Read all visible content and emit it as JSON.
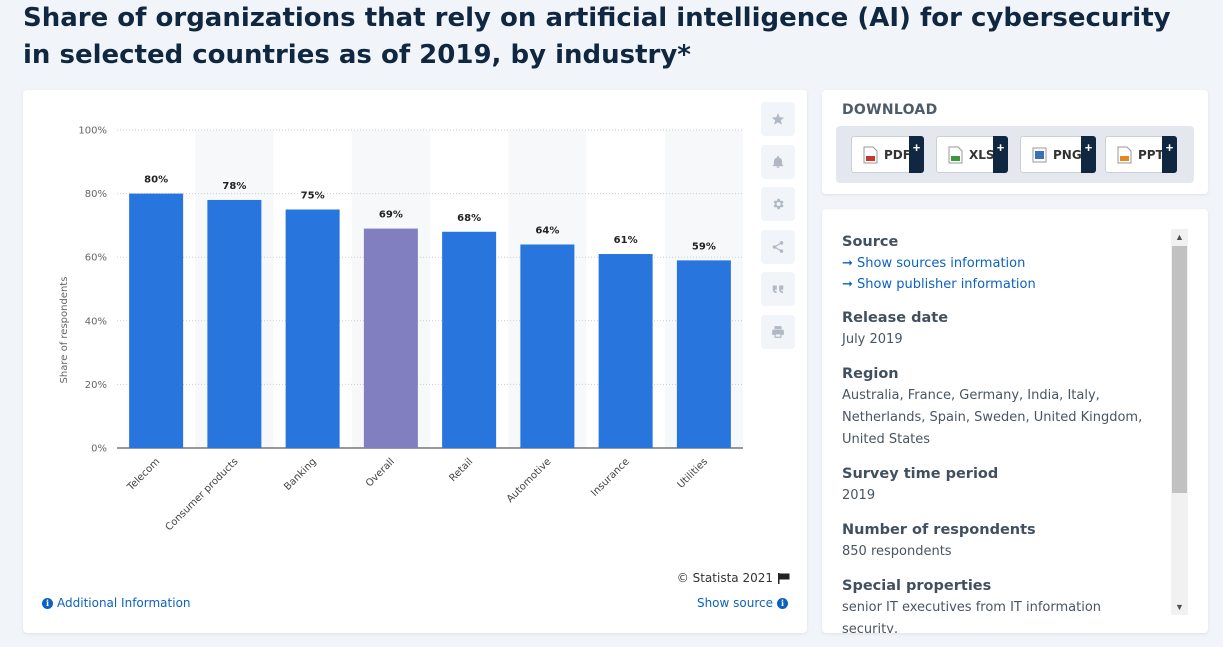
{
  "page": {
    "title": "Share of organizations that rely on artificial intelligence (AI) for cybersecurity in selected countries as of 2019, by industry*"
  },
  "chart_data": {
    "type": "bar",
    "categories": [
      "Telecom",
      "Consumer products",
      "Banking",
      "Overall",
      "Retail",
      "Automotive",
      "Insurance",
      "Utilities"
    ],
    "values": [
      80,
      78,
      75,
      69,
      68,
      64,
      61,
      59
    ],
    "data_labels": [
      "80%",
      "78%",
      "75%",
      "69%",
      "68%",
      "64%",
      "61%",
      "59%"
    ],
    "highlight_category": "Overall",
    "colors": {
      "bar": "#2876dd",
      "highlight": "#817fbf",
      "alt_band": "#f7f8fa",
      "grid": "#c9cdd2"
    },
    "ylabel": "Share of respondents",
    "xlabel": "",
    "ylim": [
      0,
      100
    ],
    "yticks": [
      "0%",
      "20%",
      "40%",
      "60%",
      "80%",
      "100%"
    ],
    "grid": true,
    "legend": "none"
  },
  "chart_footer": {
    "copyright": "© Statista 2021",
    "additional_info": "Additional Information",
    "show_source": "Show source"
  },
  "toolbar": {
    "icons": [
      "star-icon",
      "bell-icon",
      "gear-icon",
      "share-icon",
      "quote-icon",
      "print-icon"
    ]
  },
  "download": {
    "title": "DOWNLOAD",
    "buttons": [
      {
        "label": "PDF",
        "color": "#c0392b"
      },
      {
        "label": "XLS",
        "color": "#3c9a3c"
      },
      {
        "label": "PNG",
        "color": "#3b6fb6"
      },
      {
        "label": "PPT",
        "color": "#e08a1e"
      }
    ],
    "plus": "+"
  },
  "info": {
    "source_heading": "Source",
    "source_link": "➞ Show sources information",
    "publisher_link": "➞ Show publisher information",
    "release_heading": "Release date",
    "release_value": "July 2019",
    "region_heading": "Region",
    "region_value": "Australia, France, Germany, India, Italy, Netherlands, Spain, Sweden, United Kingdom, United States",
    "period_heading": "Survey time period",
    "period_value": "2019",
    "respondents_heading": "Number of respondents",
    "respondents_value": "850 respondents",
    "special_heading": "Special properties",
    "special_value": "senior IT executives from IT information security,"
  }
}
